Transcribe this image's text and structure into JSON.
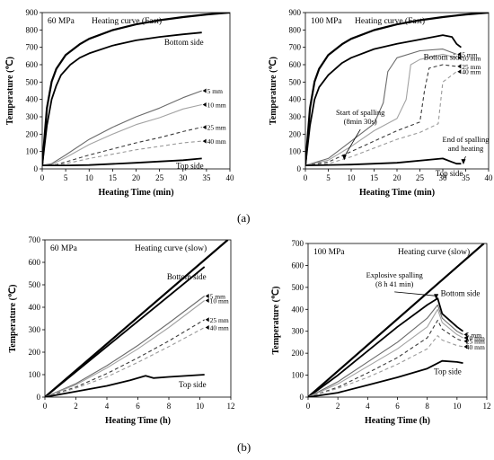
{
  "panel_labels": {
    "a": "(a)",
    "b": "(b)"
  },
  "chart_data": [
    {
      "id": "a1",
      "type": "line",
      "title": "60 MPa",
      "subtitle": "Heating curve (Fast)",
      "xlabel": "Heating Time (min)",
      "ylabel": "Temperature (℃)",
      "xlim": [
        0,
        40
      ],
      "ylim": [
        0,
        900
      ],
      "xticks": [
        0,
        5,
        10,
        15,
        20,
        25,
        30,
        35,
        40
      ],
      "yticks": [
        0,
        100,
        200,
        300,
        400,
        500,
        600,
        700,
        800,
        900
      ],
      "grid": false,
      "series": [
        {
          "name": "Heating curve (Fast)",
          "role": "heating",
          "color": "#000000",
          "x": [
            0,
            1,
            2,
            3,
            5,
            8,
            10,
            15,
            20,
            25,
            30,
            35,
            40
          ],
          "y": [
            20,
            349,
            502,
            576,
            656,
            718,
            749,
            799,
            832,
            856,
            874,
            889,
            900
          ]
        },
        {
          "name": "Bottom side",
          "role": "thick",
          "color": "#000000",
          "x": [
            0,
            1,
            2,
            3,
            4,
            6,
            8,
            10,
            15,
            20,
            25,
            30,
            34
          ],
          "y": [
            20,
            250,
            400,
            480,
            540,
            600,
            640,
            665,
            710,
            740,
            760,
            775,
            785
          ]
        },
        {
          "name": "5 mm",
          "role": "solid",
          "color": "#6b6b6b",
          "x": [
            0,
            2,
            5,
            10,
            15,
            20,
            25,
            30,
            34
          ],
          "y": [
            20,
            30,
            80,
            170,
            240,
            300,
            350,
            410,
            450
          ]
        },
        {
          "name": "10 mm",
          "role": "solid",
          "color": "#a3a3a3",
          "x": [
            0,
            2,
            5,
            10,
            15,
            20,
            25,
            30,
            34
          ],
          "y": [
            20,
            25,
            65,
            140,
            200,
            255,
            295,
            345,
            370
          ]
        },
        {
          "name": "25 mm",
          "role": "dashed",
          "color": "#3a3a3a",
          "x": [
            0,
            3,
            5,
            10,
            15,
            20,
            25,
            30,
            34
          ],
          "y": [
            20,
            25,
            40,
            80,
            115,
            150,
            180,
            215,
            240
          ]
        },
        {
          "name": "40 mm",
          "role": "dashed",
          "color": "#9a9a9a",
          "x": [
            0,
            3,
            5,
            10,
            15,
            20,
            25,
            30,
            34
          ],
          "y": [
            20,
            22,
            30,
            60,
            85,
            110,
            130,
            150,
            160
          ]
        },
        {
          "name": "Top side",
          "role": "thick",
          "color": "#000000",
          "x": [
            0,
            5,
            10,
            20,
            30,
            34
          ],
          "y": [
            20,
            20,
            22,
            35,
            50,
            60
          ]
        }
      ],
      "annotations": []
    },
    {
      "id": "a2",
      "type": "line",
      "title": "100 MPa",
      "subtitle": "Heating curve (Fast)",
      "xlabel": "Heating Time (min)",
      "ylabel": "Temperature (℃)",
      "xlim": [
        0,
        40
      ],
      "ylim": [
        0,
        900
      ],
      "xticks": [
        0,
        5,
        10,
        15,
        20,
        25,
        30,
        35,
        40
      ],
      "yticks": [
        0,
        100,
        200,
        300,
        400,
        500,
        600,
        700,
        800,
        900
      ],
      "grid": false,
      "series": [
        {
          "name": "Heating curve (Fast)",
          "role": "heating",
          "color": "#000000",
          "x": [
            0,
            1,
            2,
            3,
            5,
            8,
            10,
            15,
            20,
            25,
            30,
            35,
            40
          ],
          "y": [
            20,
            349,
            502,
            576,
            656,
            718,
            749,
            799,
            832,
            856,
            874,
            889,
            900
          ]
        },
        {
          "name": "Bottom side",
          "role": "thick",
          "color": "#000000",
          "x": [
            0,
            1,
            2,
            3,
            5,
            8,
            10,
            15,
            20,
            25,
            30,
            32,
            33,
            34
          ],
          "y": [
            20,
            250,
            400,
            470,
            540,
            610,
            640,
            690,
            720,
            745,
            770,
            760,
            720,
            700
          ]
        },
        {
          "name": "5 mm",
          "role": "solid",
          "color": "#6b6b6b",
          "x": [
            0,
            5,
            10,
            15,
            17,
            18,
            19,
            20,
            25,
            30,
            33
          ],
          "y": [
            20,
            60,
            160,
            260,
            380,
            560,
            600,
            640,
            680,
            690,
            660
          ]
        },
        {
          "name": "10 mm",
          "role": "solid",
          "color": "#a3a3a3",
          "x": [
            0,
            5,
            10,
            15,
            20,
            22,
            23,
            25,
            30,
            33
          ],
          "y": [
            20,
            50,
            130,
            220,
            290,
            400,
            600,
            630,
            660,
            640
          ]
        },
        {
          "name": "25 mm",
          "role": "dashed",
          "color": "#3a3a3a",
          "x": [
            0,
            5,
            10,
            15,
            20,
            25,
            26,
            27,
            30,
            33
          ],
          "y": [
            20,
            40,
            100,
            160,
            220,
            270,
            450,
            580,
            600,
            590
          ]
        },
        {
          "name": "40 mm",
          "role": "dashed",
          "color": "#9a9a9a",
          "x": [
            0,
            5,
            10,
            15,
            20,
            25,
            29,
            30,
            33
          ],
          "y": [
            20,
            30,
            70,
            120,
            170,
            210,
            260,
            500,
            560
          ]
        },
        {
          "name": "Top side",
          "role": "thick",
          "color": "#000000",
          "x": [
            0,
            10,
            20,
            30,
            32,
            33,
            34
          ],
          "y": [
            20,
            25,
            35,
            60,
            40,
            30,
            30
          ]
        }
      ],
      "annotations": [
        {
          "lines": [
            "Start of spalling",
            "(8min 30s)"
          ],
          "text_x": 12,
          "text_y": 310,
          "arrow_to": [
            8.5,
            50
          ]
        },
        {
          "lines": [
            "End of spalling",
            "and heating"
          ],
          "text_x": 35,
          "text_y": 155,
          "arrow_to": [
            34.5,
            25
          ]
        }
      ]
    },
    {
      "id": "b1",
      "type": "line",
      "title": "60 MPa",
      "subtitle": "Heating curve (slow)",
      "xlabel": "Heating Time (h)",
      "ylabel": "Temperature (℃)",
      "xlim": [
        0,
        12
      ],
      "ylim": [
        0,
        700
      ],
      "xticks": [
        0,
        2,
        4,
        6,
        8,
        10,
        12
      ],
      "yticks": [
        0,
        100,
        200,
        300,
        400,
        500,
        600,
        700
      ],
      "grid": false,
      "series": [
        {
          "name": "Heating curve (slow)",
          "role": "heating",
          "color": "#000000",
          "x": [
            0,
            11.8
          ],
          "y": [
            0,
            700
          ]
        },
        {
          "name": "Bottom side",
          "role": "thick",
          "color": "#000000",
          "x": [
            0,
            10.3
          ],
          "y": [
            0,
            580
          ]
        },
        {
          "name": "5 mm",
          "role": "solid",
          "color": "#6b6b6b",
          "x": [
            0,
            2,
            4,
            6,
            8,
            10.3
          ],
          "y": [
            0,
            60,
            140,
            230,
            330,
            450
          ]
        },
        {
          "name": "10 mm",
          "role": "solid",
          "color": "#a3a3a3",
          "x": [
            0,
            2,
            4,
            6,
            8,
            10.3
          ],
          "y": [
            0,
            55,
            130,
            215,
            310,
            430
          ]
        },
        {
          "name": "25 mm",
          "role": "dashed",
          "color": "#3a3a3a",
          "x": [
            0,
            2,
            4,
            6,
            8,
            10.3
          ],
          "y": [
            0,
            45,
            105,
            175,
            250,
            345
          ]
        },
        {
          "name": "40 mm",
          "role": "dashed",
          "color": "#9a9a9a",
          "x": [
            0,
            2,
            4,
            6,
            8,
            10.3
          ],
          "y": [
            0,
            40,
            90,
            155,
            225,
            310
          ]
        },
        {
          "name": "Top side",
          "role": "thick",
          "color": "#000000",
          "x": [
            0,
            2,
            4,
            5.5,
            6.5,
            7,
            8,
            10.3
          ],
          "y": [
            0,
            25,
            50,
            75,
            95,
            85,
            90,
            100
          ]
        }
      ],
      "annotations": []
    },
    {
      "id": "b2",
      "type": "line",
      "title": "100 MPa",
      "subtitle": "Heating curve (slow)",
      "xlabel": "Heating Time (h)",
      "ylabel": "Temperature (℃)",
      "xlim": [
        0,
        12
      ],
      "ylim": [
        0,
        700
      ],
      "xticks": [
        0,
        2,
        4,
        6,
        8,
        10,
        12
      ],
      "yticks": [
        0,
        100,
        200,
        300,
        400,
        500,
        600,
        700
      ],
      "grid": false,
      "series": [
        {
          "name": "Heating curve (slow)",
          "role": "heating",
          "color": "#000000",
          "x": [
            0,
            11.8
          ],
          "y": [
            0,
            700
          ]
        },
        {
          "name": "Bottom side",
          "role": "thick",
          "color": "#000000",
          "x": [
            0,
            2,
            4,
            6,
            8,
            8.7,
            9,
            10,
            10.4
          ],
          "y": [
            0,
            100,
            210,
            320,
            420,
            450,
            380,
            320,
            300
          ]
        },
        {
          "name": "5 mm",
          "role": "solid",
          "color": "#6b6b6b",
          "x": [
            0,
            2,
            4,
            6,
            8,
            8.7,
            9,
            10,
            10.4
          ],
          "y": [
            0,
            70,
            160,
            250,
            360,
            420,
            360,
            300,
            285
          ]
        },
        {
          "name": "10 mm",
          "role": "solid",
          "color": "#a3a3a3",
          "x": [
            0,
            2,
            4,
            6,
            8,
            8.7,
            9,
            10,
            10.4
          ],
          "y": [
            0,
            60,
            140,
            220,
            320,
            400,
            340,
            285,
            270
          ]
        },
        {
          "name": "25 mm",
          "role": "dashed",
          "color": "#3a3a3a",
          "x": [
            0,
            2,
            4,
            6,
            8,
            8.7,
            9,
            10,
            10.4
          ],
          "y": [
            0,
            45,
            110,
            180,
            270,
            350,
            310,
            265,
            255
          ]
        },
        {
          "name": "40 mm",
          "role": "dashed",
          "color": "#9a9a9a",
          "x": [
            0,
            2,
            4,
            6,
            8,
            8.7,
            9,
            10,
            10.4
          ],
          "y": [
            0,
            40,
            90,
            150,
            220,
            280,
            260,
            235,
            230
          ]
        },
        {
          "name": "Top side",
          "role": "thick",
          "color": "#000000",
          "x": [
            0,
            2,
            4,
            6,
            8,
            9,
            10,
            10.4
          ],
          "y": [
            0,
            20,
            55,
            90,
            130,
            165,
            160,
            155
          ]
        }
      ],
      "annotations": [
        {
          "lines": [
            "Explosive spalling",
            "(8 h 41 min)"
          ],
          "text_x": 5.8,
          "text_y": 545,
          "arrow_to": [
            8.6,
            445
          ]
        }
      ]
    }
  ]
}
